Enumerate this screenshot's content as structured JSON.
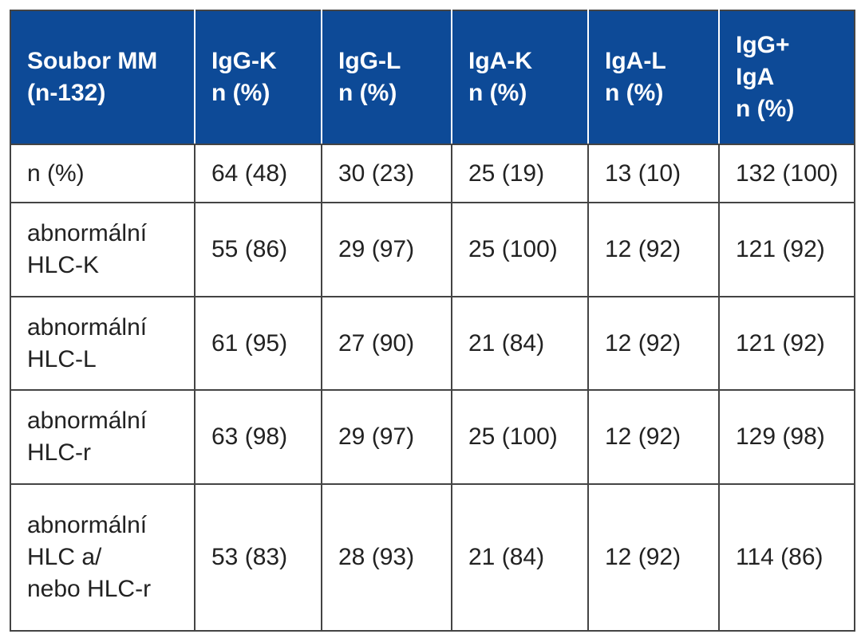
{
  "table": {
    "header": [
      [
        "Soubor MM",
        "(n-132)"
      ],
      [
        "IgG-K",
        "n (%)"
      ],
      [
        "IgG-L",
        "n (%)"
      ],
      [
        "IgA-K",
        "n (%)"
      ],
      [
        "IgA-L",
        "n (%)"
      ],
      [
        "IgG+",
        "IgA",
        "n (%)"
      ]
    ],
    "rows": [
      [
        [
          "n (%)"
        ],
        [
          "64 (48)"
        ],
        [
          "30 (23)"
        ],
        [
          "25 (19)"
        ],
        [
          "13 (10)"
        ],
        [
          "132 (100)"
        ]
      ],
      [
        [
          "abnormální",
          "HLC-K"
        ],
        [
          "55 (86)"
        ],
        [
          "29 (97)"
        ],
        [
          "25 (100)"
        ],
        [
          "12 (92)"
        ],
        [
          "121 (92)"
        ]
      ],
      [
        [
          "abnormální",
          "HLC-L"
        ],
        [
          "61 (95)"
        ],
        [
          "27 (90)"
        ],
        [
          "21 (84)"
        ],
        [
          "12 (92)"
        ],
        [
          "121 (92)"
        ]
      ],
      [
        [
          "abnormální",
          "HLC-r"
        ],
        [
          "63 (98)"
        ],
        [
          "29 (97)"
        ],
        [
          "25 (100)"
        ],
        [
          "12 (92)"
        ],
        [
          "129 (98)"
        ]
      ],
      [
        [
          "abnormální",
          "HLC a/",
          "nebo HLC-r"
        ],
        [
          "53 (83)"
        ],
        [
          "28 (93)"
        ],
        [
          "21 (84)"
        ],
        [
          "12 (92)"
        ],
        [
          "114 (86)"
        ]
      ]
    ]
  }
}
